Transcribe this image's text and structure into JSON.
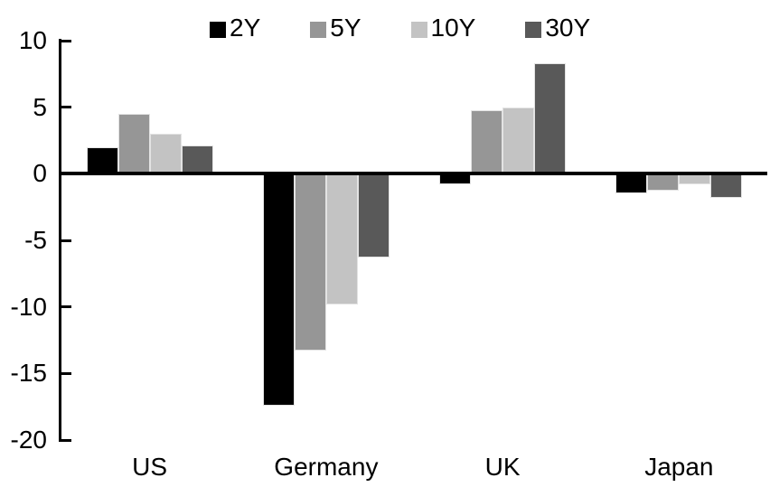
{
  "chart_data": {
    "type": "bar",
    "categories": [
      "US",
      "Germany",
      "UK",
      "Japan"
    ],
    "series": [
      {
        "name": "2Y",
        "color": "#000000",
        "values": [
          2.0,
          -17.4,
          -0.8,
          -1.5
        ]
      },
      {
        "name": "5Y",
        "color": "#969696",
        "values": [
          4.5,
          -13.3,
          4.8,
          -1.3
        ]
      },
      {
        "name": "10Y",
        "color": "#c3c3c3",
        "values": [
          3.0,
          -9.8,
          5.0,
          -0.8
        ]
      },
      {
        "name": "30Y",
        "color": "#595959",
        "values": [
          2.1,
          -6.3,
          8.3,
          -1.8
        ]
      }
    ],
    "y_axis": {
      "min": -20,
      "max": 10,
      "ticks": [
        10,
        5,
        0,
        -5,
        -10,
        -15,
        -20
      ]
    },
    "legend_position": "top",
    "grid": false,
    "axis_color": "#000000",
    "background_color": "#ffffff"
  }
}
